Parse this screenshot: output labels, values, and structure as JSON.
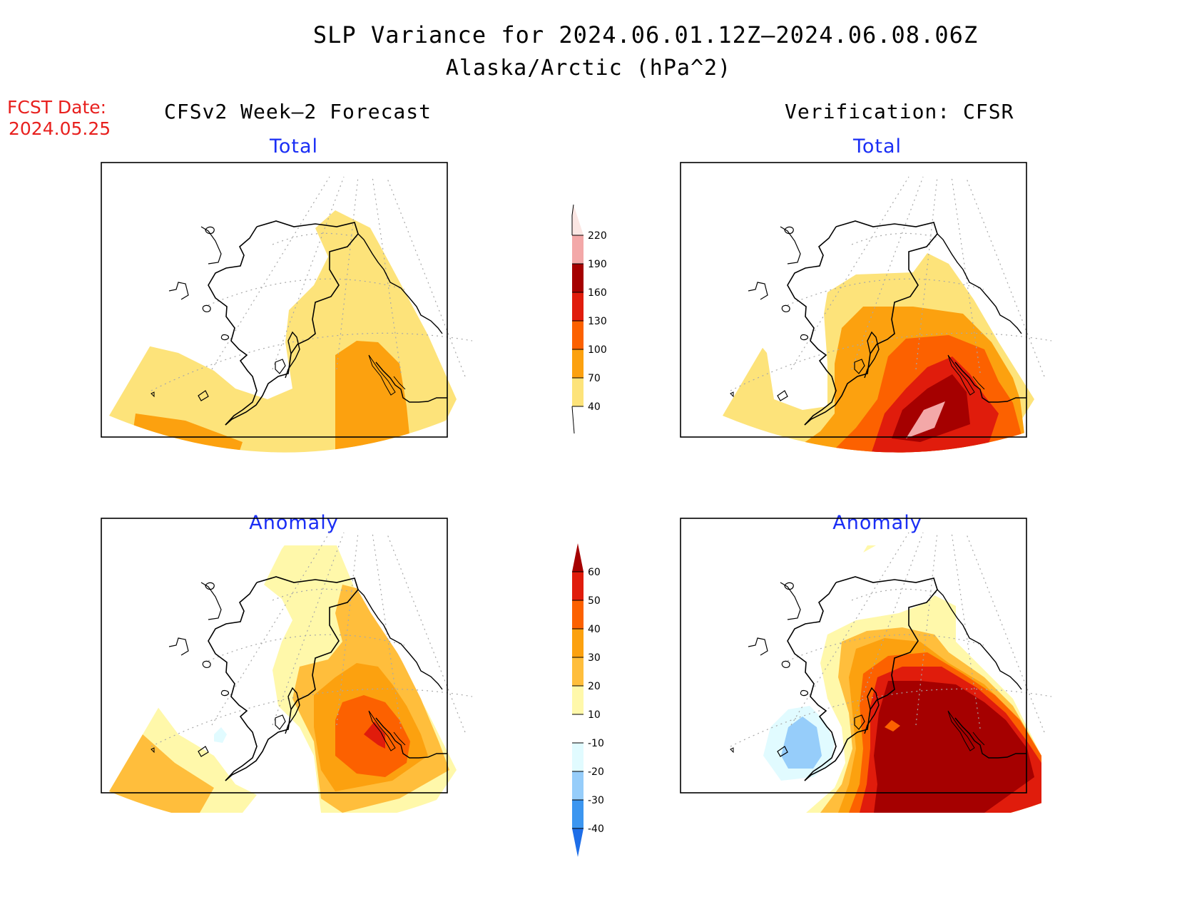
{
  "title": {
    "line1": "SLP Variance for 2024.06.01.12Z—2024.06.08.06Z",
    "line2": "Alaska/Arctic (hPa^2)"
  },
  "forecast_date": {
    "label": "FCST Date:",
    "value": "2024.05.25"
  },
  "column_headers": {
    "left": "CFSv2 Week—2 Forecast",
    "right": "Verification: CFSR"
  },
  "panels": [
    {
      "id": "fcst-total",
      "title": "Total"
    },
    {
      "id": "verif-total",
      "title": "Total"
    },
    {
      "id": "fcst-anomaly",
      "title": "Anomaly"
    },
    {
      "id": "verif-anomaly",
      "title": "Anomaly"
    }
  ],
  "colors": {
    "title_blue": "#1a2ef5",
    "date_red": "#e8201e",
    "land_white": "#ffffff"
  },
  "total_colorbar": {
    "levels": [
      "40",
      "70",
      "100",
      "130",
      "160",
      "190",
      "220"
    ],
    "colors": [
      "#fde37a",
      "#fca10f",
      "#fc6100",
      "#e01c0c",
      "#a50000",
      "#f3a8a8",
      "#fbe6e3"
    ]
  },
  "anomaly_colorbar": {
    "levels": [
      "-40",
      "-30",
      "-20",
      "-10",
      "10",
      "20",
      "30",
      "40",
      "50",
      "60"
    ],
    "colors": [
      "#1e6ee8",
      "#3c96f0",
      "#96cdfa",
      "#e1fbff",
      "#ffffff",
      "#fff8aa",
      "#ffbe3c",
      "#fca10f",
      "#fc6100",
      "#e01c0c",
      "#a50000"
    ]
  }
}
